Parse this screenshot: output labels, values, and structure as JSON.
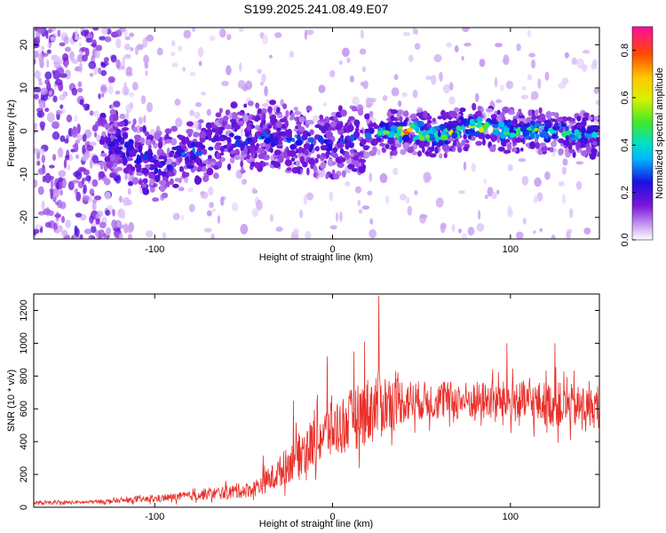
{
  "title": "S199.2025.241.08.49.E07",
  "chart_data": [
    {
      "type": "heatmap",
      "name": "spectrogram",
      "xlabel": "Height of straight line (km)",
      "ylabel": "Frequency (Hz)",
      "xlim": [
        -168,
        150
      ],
      "ylim": [
        -25,
        24
      ],
      "xticks": [
        -100,
        0,
        100
      ],
      "xtick_labels": [
        "-100",
        "0",
        "100"
      ],
      "yticks": [
        20,
        10,
        0,
        -10,
        -20
      ],
      "ytick_labels": [
        "20",
        "10",
        "0",
        "-10",
        "-20"
      ],
      "colorbar": {
        "label": "Normalized spectral amplitude",
        "range": [
          0.0,
          0.9
        ],
        "ticks": [
          0.0,
          0.2,
          0.4,
          0.6,
          0.8
        ],
        "tick_labels": [
          "0.0",
          "0.2",
          "0.4",
          "0.6",
          "0.8"
        ]
      },
      "ridge": {
        "height_km": [
          -168,
          -130,
          -120,
          -100,
          -90,
          -80,
          -60,
          -40,
          -20,
          0,
          20,
          40,
          60,
          80,
          100,
          120,
          140,
          150
        ],
        "center_freq_hz": [
          0,
          -4,
          -3,
          -8,
          -7,
          -5,
          -2,
          -1,
          -2,
          -3,
          -1,
          0,
          -1,
          1,
          0,
          0,
          -1,
          -1
        ],
        "peak_amplitude": [
          0.15,
          0.2,
          0.3,
          0.3,
          0.32,
          0.32,
          0.3,
          0.3,
          0.3,
          0.28,
          0.3,
          0.85,
          0.6,
          0.7,
          0.5,
          0.6,
          0.45,
          0.4
        ]
      }
    },
    {
      "type": "line",
      "name": "snr",
      "xlabel": "Height of straight line (km)",
      "ylabel": "SNR (10 * v/v)",
      "xlim": [
        -168,
        150
      ],
      "ylim": [
        0,
        1300
      ],
      "xticks": [
        -100,
        0,
        100
      ],
      "xtick_labels": [
        "-100",
        "0",
        "100"
      ],
      "yticks": [
        0,
        200,
        400,
        600,
        800,
        1000,
        1200
      ],
      "ytick_labels": [
        "0",
        "200",
        "400",
        "600",
        "800",
        "1000",
        "1200"
      ],
      "color": "#e8302a",
      "envelope": {
        "x": [
          -168,
          -140,
          -120,
          -100,
          -80,
          -60,
          -45,
          -35,
          -25,
          -15,
          -5,
          5,
          15,
          25,
          35,
          50,
          70,
          90,
          110,
          130,
          150
        ],
        "mean": [
          25,
          30,
          40,
          50,
          70,
          90,
          110,
          170,
          260,
          360,
          440,
          500,
          560,
          620,
          650,
          650,
          650,
          650,
          640,
          620,
          600
        ],
        "spread": [
          15,
          15,
          20,
          30,
          40,
          60,
          70,
          110,
          160,
          210,
          240,
          260,
          280,
          320,
          220,
          170,
          170,
          170,
          190,
          200,
          170
        ]
      },
      "peaks": [
        {
          "x": -39,
          "value": 315
        },
        {
          "x": -22,
          "value": 650
        },
        {
          "x": -3,
          "value": 920
        },
        {
          "x": 12,
          "value": 950
        },
        {
          "x": 18,
          "value": 1010
        },
        {
          "x": 26,
          "value": 1290
        },
        {
          "x": 98,
          "value": 1000
        },
        {
          "x": 125,
          "value": 1000
        }
      ]
    }
  ]
}
